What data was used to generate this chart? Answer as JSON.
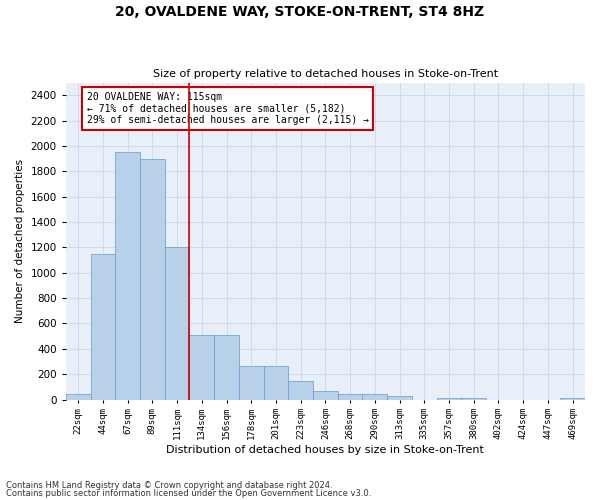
{
  "title1": "20, OVALDENE WAY, STOKE-ON-TRENT, ST4 8HZ",
  "title2": "Size of property relative to detached houses in Stoke-on-Trent",
  "xlabel": "Distribution of detached houses by size in Stoke-on-Trent",
  "ylabel": "Number of detached properties",
  "categories": [
    "22sqm",
    "44sqm",
    "67sqm",
    "89sqm",
    "111sqm",
    "134sqm",
    "156sqm",
    "178sqm",
    "201sqm",
    "223sqm",
    "246sqm",
    "268sqm",
    "290sqm",
    "313sqm",
    "335sqm",
    "357sqm",
    "380sqm",
    "402sqm",
    "424sqm",
    "447sqm",
    "469sqm"
  ],
  "values": [
    40,
    1150,
    1950,
    1900,
    1200,
    510,
    510,
    265,
    265,
    150,
    70,
    45,
    45,
    30,
    0,
    15,
    15,
    0,
    0,
    0,
    10
  ],
  "bar_color": "#b8d0e8",
  "bar_edge_color": "#6699cc",
  "grid_color": "#c8d8ea",
  "background_color": "#e8eff8",
  "vline_x_index": 4,
  "vline_color": "#cc0000",
  "annotation_text": "20 OVALDENE WAY: 115sqm\n← 71% of detached houses are smaller (5,182)\n29% of semi-detached houses are larger (2,115) →",
  "annotation_box_color": "#ffffff",
  "annotation_box_edge": "#cc0000",
  "footnote1": "Contains HM Land Registry data © Crown copyright and database right 2024.",
  "footnote2": "Contains public sector information licensed under the Open Government Licence v3.0.",
  "ylim": [
    0,
    2500
  ],
  "yticks": [
    0,
    200,
    400,
    600,
    800,
    1000,
    1200,
    1400,
    1600,
    1800,
    2000,
    2200,
    2400
  ]
}
